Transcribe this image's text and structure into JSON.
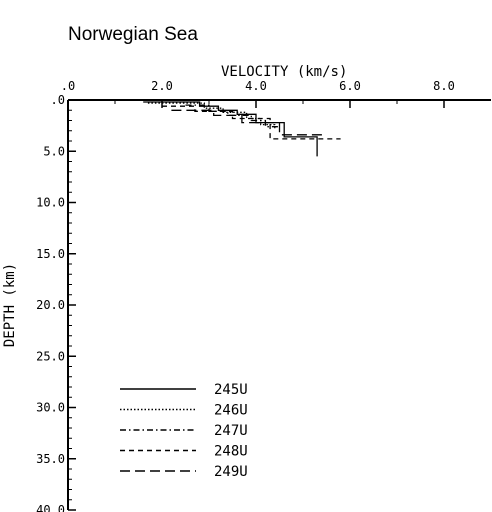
{
  "chart_data": {
    "type": "line",
    "title": "Norwegian Sea",
    "xlabel": "VELOCITY (km/s)",
    "ylabel": "DEPTH (km)",
    "x_axis_position": "top",
    "y_inverted": true,
    "xlim": [
      0,
      9.0
    ],
    "ylim": [
      0,
      40
    ],
    "x_ticks": [
      0,
      2,
      4,
      6,
      8
    ],
    "x_tick_labels": [
      ".0",
      "2.0",
      "4.0",
      "6.0",
      "8.0"
    ],
    "y_ticks": [
      0,
      5,
      10,
      15,
      20,
      25,
      30,
      35,
      40
    ],
    "y_tick_labels": [
      ".0",
      "5.0",
      "10.0",
      "15.0",
      "20.0",
      "25.0",
      "30.0",
      "35.0",
      "40.0"
    ],
    "grid": false,
    "legend_position": "bottom-left",
    "series": [
      {
        "name": "245U",
        "style": "solid",
        "points": [
          [
            1.6,
            0.2
          ],
          [
            2.8,
            0.2
          ],
          [
            2.8,
            0.6
          ],
          [
            3.2,
            0.6
          ],
          [
            3.2,
            1.0
          ],
          [
            3.6,
            1.0
          ],
          [
            3.6,
            1.4
          ],
          [
            4.0,
            1.4
          ],
          [
            4.0,
            2.2
          ],
          [
            4.6,
            2.2
          ],
          [
            4.6,
            3.6
          ],
          [
            5.3,
            3.6
          ],
          [
            5.3,
            5.5
          ]
        ]
      },
      {
        "name": "246U",
        "style": "dotted",
        "points": [
          [
            1.7,
            0.3
          ],
          [
            2.9,
            0.3
          ],
          [
            2.9,
            0.8
          ],
          [
            3.3,
            0.8
          ],
          [
            3.3,
            1.2
          ],
          [
            3.8,
            1.2
          ],
          [
            3.8,
            1.8
          ],
          [
            4.1,
            1.8
          ],
          [
            4.1,
            2.4
          ],
          [
            4.4,
            2.4
          ],
          [
            4.4,
            2.8
          ]
        ]
      },
      {
        "name": "247U",
        "style": "dash-dot",
        "points": [
          [
            2.5,
            0.5
          ],
          [
            3.0,
            0.5
          ],
          [
            3.0,
            1.1
          ],
          [
            3.4,
            1.1
          ],
          [
            3.4,
            1.5
          ],
          [
            3.9,
            1.5
          ],
          [
            3.9,
            2.0
          ],
          [
            4.2,
            2.0
          ],
          [
            4.2,
            2.6
          ],
          [
            4.5,
            2.6
          ]
        ]
      },
      {
        "name": "248U",
        "style": "short-dash",
        "points": [
          [
            2.0,
            0.6
          ],
          [
            2.7,
            0.6
          ],
          [
            2.7,
            1.1
          ],
          [
            3.5,
            1.1
          ],
          [
            3.5,
            1.8
          ],
          [
            4.3,
            1.8
          ],
          [
            4.3,
            3.8
          ],
          [
            5.8,
            3.8
          ]
        ]
      },
      {
        "name": "249U",
        "style": "long-dash",
        "points": [
          [
            2.2,
            1.0
          ],
          [
            3.1,
            1.0
          ],
          [
            3.1,
            1.5
          ],
          [
            3.7,
            1.5
          ],
          [
            3.7,
            2.2
          ],
          [
            4.5,
            2.2
          ],
          [
            4.5,
            3.4
          ],
          [
            5.5,
            3.4
          ]
        ]
      }
    ]
  }
}
